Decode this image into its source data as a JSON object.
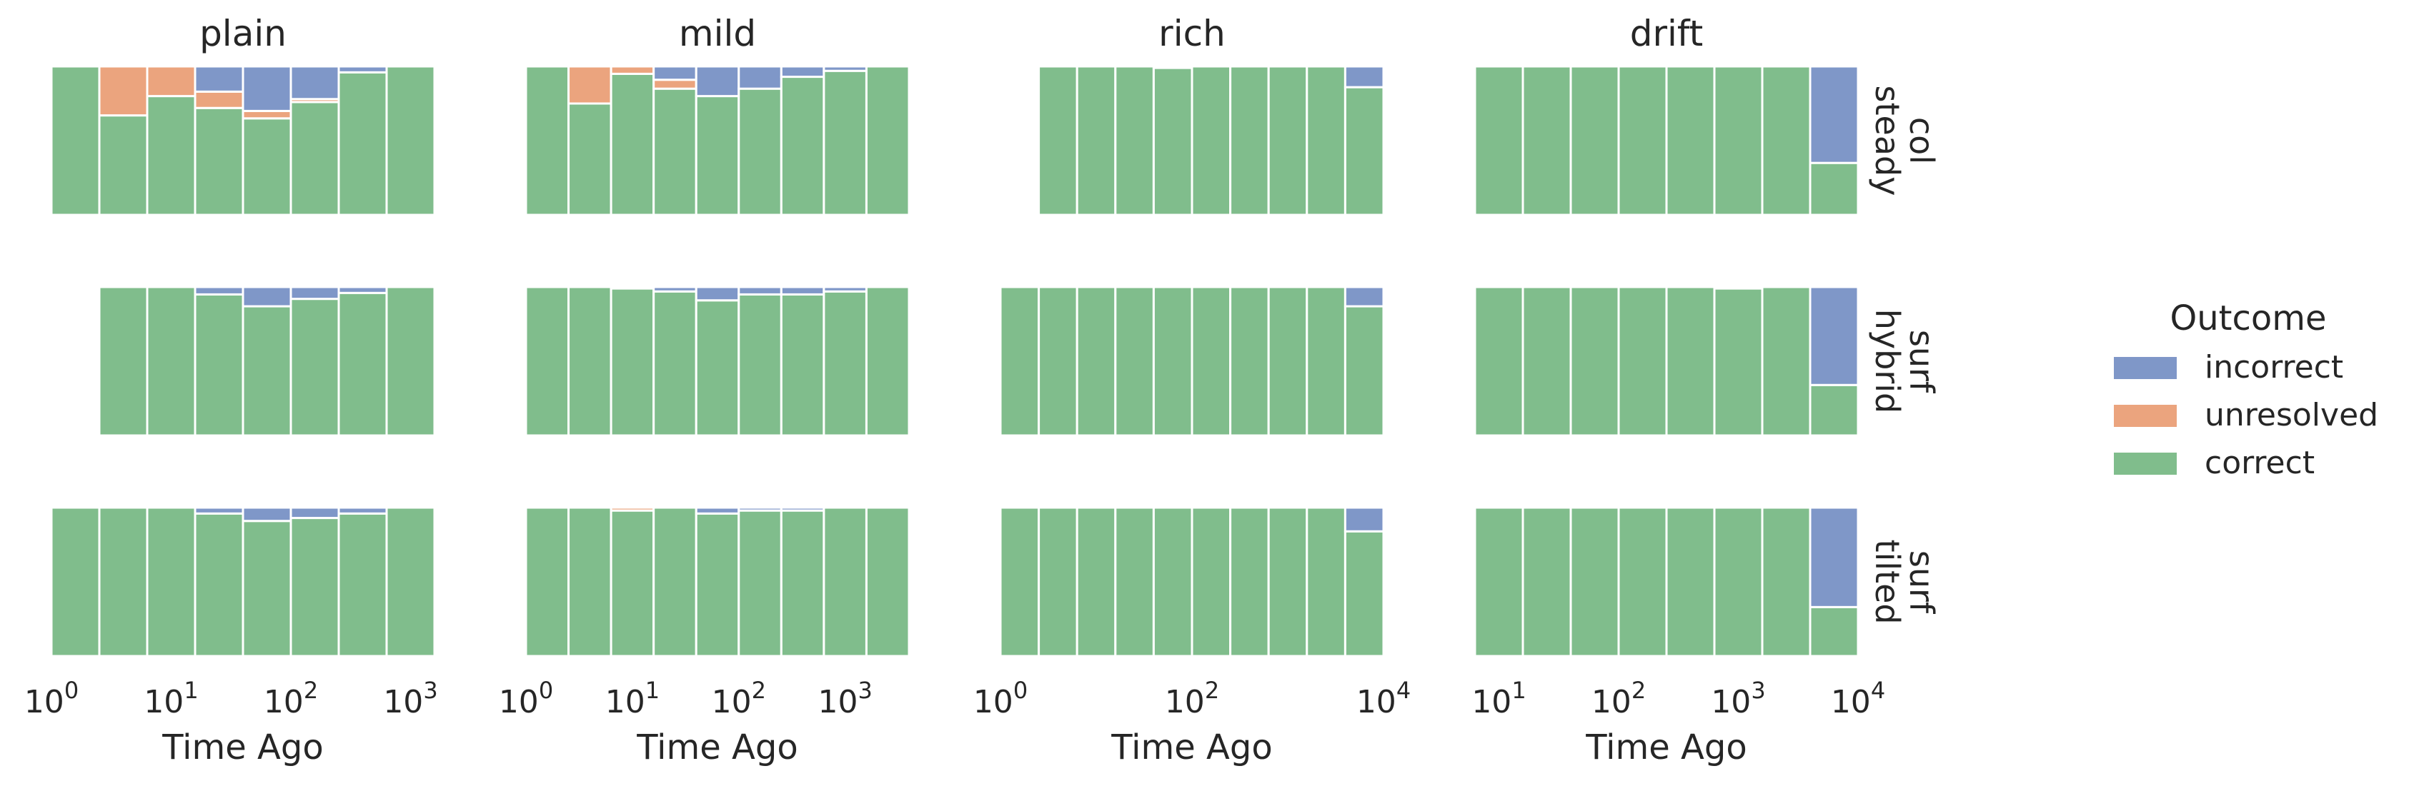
{
  "chart_data": {
    "type": "bar",
    "title": "",
    "x_axis_label": "Time Ago",
    "y_axis_label": "",
    "x_scale": "log",
    "stacking": "fill",
    "column_titles": [
      "plain",
      "mild",
      "rich",
      "drift"
    ],
    "row_titles": [
      [
        "col",
        "steady"
      ],
      [
        "surf",
        "hybrid"
      ],
      [
        "surf",
        "tilted"
      ]
    ],
    "legend": {
      "title": "Outcome",
      "placement": "right",
      "items": [
        {
          "label": "incorrect",
          "color": "#7f97c8"
        },
        {
          "label": "unresolved",
          "color": "#eba47e"
        },
        {
          "label": "correct",
          "color": "#80bd8c"
        }
      ]
    },
    "columns": [
      {
        "xlim_log10": [
          0,
          3.2
        ],
        "ticks": [
          {
            "exp": 0,
            "label_base": "10",
            "label_sup": "0"
          },
          {
            "exp": 1,
            "label_base": "10",
            "label_sup": "1"
          },
          {
            "exp": 2,
            "label_base": "10",
            "label_sup": "2"
          },
          {
            "exp": 3,
            "label_base": "10",
            "label_sup": "3"
          }
        ]
      },
      {
        "xlim_log10": [
          0,
          3.6
        ],
        "ticks": [
          {
            "exp": 0,
            "label_base": "10",
            "label_sup": "0"
          },
          {
            "exp": 1,
            "label_base": "10",
            "label_sup": "1"
          },
          {
            "exp": 2,
            "label_base": "10",
            "label_sup": "2"
          },
          {
            "exp": 3,
            "label_base": "10",
            "label_sup": "3"
          }
        ]
      },
      {
        "xlim_log10": [
          0,
          4.0
        ],
        "ticks": [
          {
            "exp": 0,
            "label_base": "10",
            "label_sup": "0"
          },
          {
            "exp": 2,
            "label_base": "10",
            "label_sup": "2"
          },
          {
            "exp": 4,
            "label_base": "10",
            "label_sup": "4"
          }
        ]
      },
      {
        "xlim_log10": [
          0.8,
          4.0
        ],
        "ticks": [
          {
            "exp": 1,
            "label_base": "10",
            "label_sup": "1"
          },
          {
            "exp": 2,
            "label_base": "10",
            "label_sup": "2"
          },
          {
            "exp": 3,
            "label_base": "10",
            "label_sup": "3"
          },
          {
            "exp": 4,
            "label_base": "10",
            "label_sup": "4"
          }
        ]
      }
    ],
    "panels": [
      [
        {
          "bin_edges_log10": [
            0,
            0.4,
            0.8,
            1.2,
            1.6,
            2.0,
            2.4,
            2.8,
            3.2
          ],
          "bins": [
            {
              "incorrect": 0.0,
              "unresolved": 0.0,
              "correct": 1.0
            },
            {
              "incorrect": 0.0,
              "unresolved": 0.33,
              "correct": 0.67
            },
            {
              "incorrect": 0.0,
              "unresolved": 0.2,
              "correct": 0.8
            },
            {
              "incorrect": 0.17,
              "unresolved": 0.11,
              "correct": 0.72
            },
            {
              "incorrect": 0.3,
              "unresolved": 0.05,
              "correct": 0.65
            },
            {
              "incorrect": 0.22,
              "unresolved": 0.02,
              "correct": 0.76
            },
            {
              "incorrect": 0.04,
              "unresolved": 0.0,
              "correct": 0.96
            },
            {
              "incorrect": 0.0,
              "unresolved": 0.0,
              "correct": 1.0
            }
          ]
        },
        {
          "bin_edges_log10": [
            0.4,
            0.8,
            1.2,
            1.6,
            2.0,
            2.4,
            2.8,
            3.2
          ],
          "bins": [
            {
              "incorrect": 0.0,
              "unresolved": 0.0,
              "correct": 1.0
            },
            {
              "incorrect": 0.0,
              "unresolved": 0.0,
              "correct": 1.0
            },
            {
              "incorrect": 0.05,
              "unresolved": 0.0,
              "correct": 0.95
            },
            {
              "incorrect": 0.13,
              "unresolved": 0.0,
              "correct": 0.87
            },
            {
              "incorrect": 0.08,
              "unresolved": 0.0,
              "correct": 0.92
            },
            {
              "incorrect": 0.04,
              "unresolved": 0.0,
              "correct": 0.96
            },
            {
              "incorrect": 0.0,
              "unresolved": 0.0,
              "correct": 1.0
            }
          ]
        },
        {
          "bin_edges_log10": [
            0,
            0.4,
            0.8,
            1.2,
            1.6,
            2.0,
            2.4,
            2.8,
            3.2
          ],
          "bins": [
            {
              "incorrect": 0.0,
              "unresolved": 0.0,
              "correct": 1.0
            },
            {
              "incorrect": 0.0,
              "unresolved": 0.0,
              "correct": 1.0
            },
            {
              "incorrect": 0.0,
              "unresolved": 0.0,
              "correct": 1.0
            },
            {
              "incorrect": 0.04,
              "unresolved": 0.0,
              "correct": 0.96
            },
            {
              "incorrect": 0.09,
              "unresolved": 0.0,
              "correct": 0.91
            },
            {
              "incorrect": 0.07,
              "unresolved": 0.0,
              "correct": 0.93
            },
            {
              "incorrect": 0.04,
              "unresolved": 0.0,
              "correct": 0.96
            },
            {
              "incorrect": 0.0,
              "unresolved": 0.0,
              "correct": 1.0
            }
          ]
        }
      ],
      [
        {
          "bin_edges_log10": [
            0,
            0.4,
            0.8,
            1.2,
            1.6,
            2.0,
            2.4,
            2.8,
            3.2,
            3.6
          ],
          "bins": [
            {
              "incorrect": 0.0,
              "unresolved": 0.0,
              "correct": 1.0
            },
            {
              "incorrect": 0.0,
              "unresolved": 0.25,
              "correct": 0.75
            },
            {
              "incorrect": 0.0,
              "unresolved": 0.05,
              "correct": 0.95
            },
            {
              "incorrect": 0.09,
              "unresolved": 0.06,
              "correct": 0.85
            },
            {
              "incorrect": 0.2,
              "unresolved": 0.0,
              "correct": 0.8
            },
            {
              "incorrect": 0.15,
              "unresolved": 0.0,
              "correct": 0.85
            },
            {
              "incorrect": 0.07,
              "unresolved": 0.0,
              "correct": 0.93
            },
            {
              "incorrect": 0.03,
              "unresolved": 0.0,
              "correct": 0.97
            },
            {
              "incorrect": 0.0,
              "unresolved": 0.0,
              "correct": 1.0
            }
          ]
        },
        {
          "bin_edges_log10": [
            0,
            0.4,
            0.8,
            1.2,
            1.6,
            2.0,
            2.4,
            2.8,
            3.2,
            3.6
          ],
          "bins": [
            {
              "incorrect": 0.0,
              "unresolved": 0.0,
              "correct": 1.0
            },
            {
              "incorrect": 0.0,
              "unresolved": 0.0,
              "correct": 1.0
            },
            {
              "incorrect": 0.01,
              "unresolved": 0.0,
              "correct": 0.99
            },
            {
              "incorrect": 0.03,
              "unresolved": 0.0,
              "correct": 0.97
            },
            {
              "incorrect": 0.09,
              "unresolved": 0.0,
              "correct": 0.91
            },
            {
              "incorrect": 0.05,
              "unresolved": 0.0,
              "correct": 0.95
            },
            {
              "incorrect": 0.05,
              "unresolved": 0.0,
              "correct": 0.95
            },
            {
              "incorrect": 0.03,
              "unresolved": 0.0,
              "correct": 0.97
            },
            {
              "incorrect": 0.0,
              "unresolved": 0.0,
              "correct": 1.0
            }
          ]
        },
        {
          "bin_edges_log10": [
            0,
            0.4,
            0.8,
            1.2,
            1.6,
            2.0,
            2.4,
            2.8,
            3.2,
            3.6
          ],
          "bins": [
            {
              "incorrect": 0.0,
              "unresolved": 0.0,
              "correct": 1.0
            },
            {
              "incorrect": 0.0,
              "unresolved": 0.0,
              "correct": 1.0
            },
            {
              "incorrect": 0.0,
              "unresolved": 0.02,
              "correct": 0.98
            },
            {
              "incorrect": 0.0,
              "unresolved": 0.0,
              "correct": 1.0
            },
            {
              "incorrect": 0.04,
              "unresolved": 0.0,
              "correct": 0.96
            },
            {
              "incorrect": 0.02,
              "unresolved": 0.0,
              "correct": 0.98
            },
            {
              "incorrect": 0.02,
              "unresolved": 0.0,
              "correct": 0.98
            },
            {
              "incorrect": 0.0,
              "unresolved": 0.0,
              "correct": 1.0
            },
            {
              "incorrect": 0.0,
              "unresolved": 0.0,
              "correct": 1.0
            }
          ]
        }
      ],
      [
        {
          "bin_edges_log10": [
            0.4,
            0.8,
            1.2,
            1.6,
            2.0,
            2.4,
            2.8,
            3.2,
            3.6,
            4.0
          ],
          "bins": [
            {
              "incorrect": 0.0,
              "unresolved": 0.0,
              "correct": 1.0
            },
            {
              "incorrect": 0.0,
              "unresolved": 0.0,
              "correct": 1.0
            },
            {
              "incorrect": 0.0,
              "unresolved": 0.0,
              "correct": 1.0
            },
            {
              "incorrect": 0.01,
              "unresolved": 0.0,
              "correct": 0.99
            },
            {
              "incorrect": 0.0,
              "unresolved": 0.0,
              "correct": 1.0
            },
            {
              "incorrect": 0.0,
              "unresolved": 0.0,
              "correct": 1.0
            },
            {
              "incorrect": 0.0,
              "unresolved": 0.0,
              "correct": 1.0
            },
            {
              "incorrect": 0.0,
              "unresolved": 0.0,
              "correct": 1.0
            },
            {
              "incorrect": 0.14,
              "unresolved": 0.0,
              "correct": 0.86
            }
          ]
        },
        {
          "bin_edges_log10": [
            0,
            0.4,
            0.8,
            1.2,
            1.6,
            2.0,
            2.4,
            2.8,
            3.2,
            3.6,
            4.0
          ],
          "bins": [
            {
              "incorrect": 0.0,
              "unresolved": 0.0,
              "correct": 1.0
            },
            {
              "incorrect": 0.0,
              "unresolved": 0.0,
              "correct": 1.0
            },
            {
              "incorrect": 0.0,
              "unresolved": 0.0,
              "correct": 1.0
            },
            {
              "incorrect": 0.0,
              "unresolved": 0.0,
              "correct": 1.0
            },
            {
              "incorrect": 0.0,
              "unresolved": 0.0,
              "correct": 1.0
            },
            {
              "incorrect": 0.0,
              "unresolved": 0.0,
              "correct": 1.0
            },
            {
              "incorrect": 0.0,
              "unresolved": 0.0,
              "correct": 1.0
            },
            {
              "incorrect": 0.0,
              "unresolved": 0.0,
              "correct": 1.0
            },
            {
              "incorrect": 0.0,
              "unresolved": 0.0,
              "correct": 1.0
            },
            {
              "incorrect": 0.13,
              "unresolved": 0.0,
              "correct": 0.87
            }
          ]
        },
        {
          "bin_edges_log10": [
            0,
            0.4,
            0.8,
            1.2,
            1.6,
            2.0,
            2.4,
            2.8,
            3.2,
            3.6,
            4.0
          ],
          "bins": [
            {
              "incorrect": 0.0,
              "unresolved": 0.0,
              "correct": 1.0
            },
            {
              "incorrect": 0.0,
              "unresolved": 0.0,
              "correct": 1.0
            },
            {
              "incorrect": 0.0,
              "unresolved": 0.0,
              "correct": 1.0
            },
            {
              "incorrect": 0.0,
              "unresolved": 0.0,
              "correct": 1.0
            },
            {
              "incorrect": 0.0,
              "unresolved": 0.0,
              "correct": 1.0
            },
            {
              "incorrect": 0.0,
              "unresolved": 0.0,
              "correct": 1.0
            },
            {
              "incorrect": 0.0,
              "unresolved": 0.0,
              "correct": 1.0
            },
            {
              "incorrect": 0.0,
              "unresolved": 0.0,
              "correct": 1.0
            },
            {
              "incorrect": 0.0,
              "unresolved": 0.0,
              "correct": 1.0
            },
            {
              "incorrect": 0.16,
              "unresolved": 0.0,
              "correct": 0.84
            }
          ]
        }
      ],
      [
        {
          "bin_edges_log10": [
            0.8,
            1.2,
            1.6,
            2.0,
            2.4,
            2.8,
            3.2,
            3.6,
            4.0
          ],
          "bins": [
            {
              "incorrect": 0.0,
              "unresolved": 0.0,
              "correct": 1.0
            },
            {
              "incorrect": 0.0,
              "unresolved": 0.0,
              "correct": 1.0
            },
            {
              "incorrect": 0.0,
              "unresolved": 0.0,
              "correct": 1.0
            },
            {
              "incorrect": 0.0,
              "unresolved": 0.0,
              "correct": 1.0
            },
            {
              "incorrect": 0.0,
              "unresolved": 0.0,
              "correct": 1.0
            },
            {
              "incorrect": 0.0,
              "unresolved": 0.0,
              "correct": 1.0
            },
            {
              "incorrect": 0.0,
              "unresolved": 0.0,
              "correct": 1.0
            },
            {
              "incorrect": 0.65,
              "unresolved": 0.0,
              "correct": 0.35
            }
          ]
        },
        {
          "bin_edges_log10": [
            0.8,
            1.2,
            1.6,
            2.0,
            2.4,
            2.8,
            3.2,
            3.6,
            4.0
          ],
          "bins": [
            {
              "incorrect": 0.0,
              "unresolved": 0.0,
              "correct": 1.0
            },
            {
              "incorrect": 0.0,
              "unresolved": 0.0,
              "correct": 1.0
            },
            {
              "incorrect": 0.0,
              "unresolved": 0.0,
              "correct": 1.0
            },
            {
              "incorrect": 0.0,
              "unresolved": 0.0,
              "correct": 1.0
            },
            {
              "incorrect": 0.0,
              "unresolved": 0.0,
              "correct": 1.0
            },
            {
              "incorrect": 0.01,
              "unresolved": 0.0,
              "correct": 0.99
            },
            {
              "incorrect": 0.0,
              "unresolved": 0.0,
              "correct": 1.0
            },
            {
              "incorrect": 0.66,
              "unresolved": 0.0,
              "correct": 0.34
            }
          ]
        },
        {
          "bin_edges_log10": [
            0.8,
            1.2,
            1.6,
            2.0,
            2.4,
            2.8,
            3.2,
            3.6,
            4.0
          ],
          "bins": [
            {
              "incorrect": 0.0,
              "unresolved": 0.0,
              "correct": 1.0
            },
            {
              "incorrect": 0.0,
              "unresolved": 0.0,
              "correct": 1.0
            },
            {
              "incorrect": 0.0,
              "unresolved": 0.0,
              "correct": 1.0
            },
            {
              "incorrect": 0.0,
              "unresolved": 0.0,
              "correct": 1.0
            },
            {
              "incorrect": 0.0,
              "unresolved": 0.0,
              "correct": 1.0
            },
            {
              "incorrect": 0.0,
              "unresolved": 0.0,
              "correct": 1.0
            },
            {
              "incorrect": 0.0,
              "unresolved": 0.0,
              "correct": 1.0
            },
            {
              "incorrect": 0.67,
              "unresolved": 0.0,
              "correct": 0.33
            }
          ]
        }
      ]
    ]
  }
}
